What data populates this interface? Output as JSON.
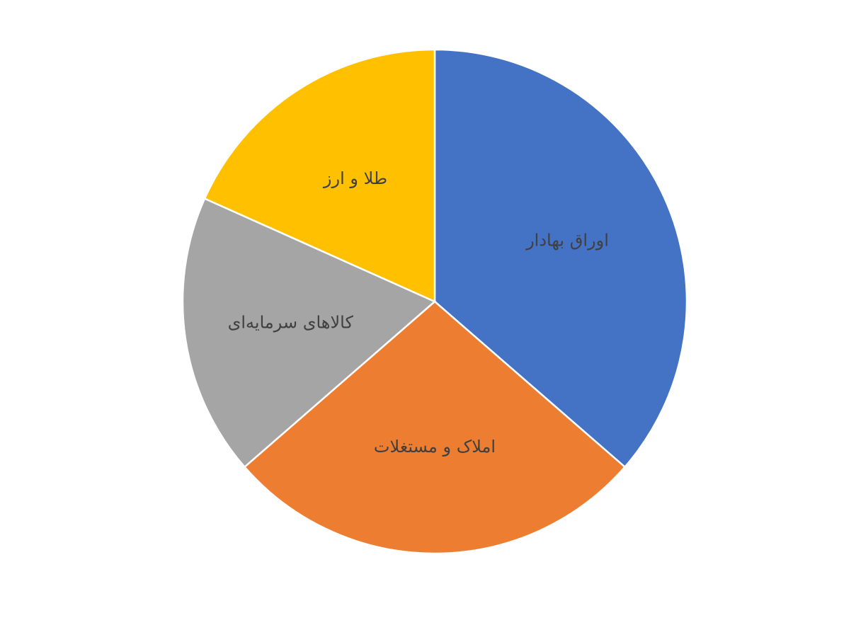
{
  "chart_data": {
    "type": "pie",
    "title": "",
    "start_angle_deg": 0,
    "direction": "clockwise",
    "legend": "none",
    "slices": [
      {
        "label": "اوراق بهادار",
        "value": 36.4,
        "color": "#4472C4"
      },
      {
        "label": "املاک و مستغلات",
        "value": 27.2,
        "color": "#ED7D31"
      },
      {
        "label": "کالاهای سرمایه‌ای",
        "value": 18.1,
        "color": "#A5A5A5"
      },
      {
        "label": "طلا و ارز",
        "value": 18.3,
        "color": "#FFC000"
      }
    ]
  }
}
